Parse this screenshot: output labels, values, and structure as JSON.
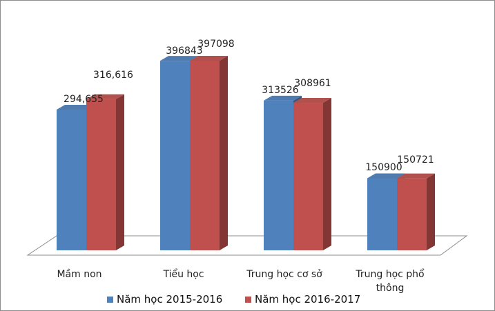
{
  "chart_data": {
    "type": "bar",
    "categories": [
      "Mầm non",
      "Tiểu học",
      "Trung học cơ sở",
      "Trung học phổ thông"
    ],
    "category_lines": [
      [
        "Mầm non"
      ],
      [
        "Tiểu học"
      ],
      [
        "Trung học cơ sở"
      ],
      [
        "Trung học phổ",
        "thông"
      ]
    ],
    "series": [
      {
        "name": "Năm học 2015-2016",
        "color": "#4f81bd",
        "values": [
          294655,
          396843,
          313526,
          150900
        ],
        "labels": [
          "294,655",
          "396843",
          "313526",
          "150900"
        ]
      },
      {
        "name": "Năm học 2016-2017",
        "color": "#c0504d",
        "values": [
          316616,
          397098,
          308961,
          150721
        ],
        "labels": [
          "316,616",
          "397098",
          "308961",
          "150721"
        ]
      }
    ],
    "ylim": [
      0,
      420000
    ],
    "grid": false,
    "style": "3d-clustered-column",
    "legend": "bottom"
  }
}
